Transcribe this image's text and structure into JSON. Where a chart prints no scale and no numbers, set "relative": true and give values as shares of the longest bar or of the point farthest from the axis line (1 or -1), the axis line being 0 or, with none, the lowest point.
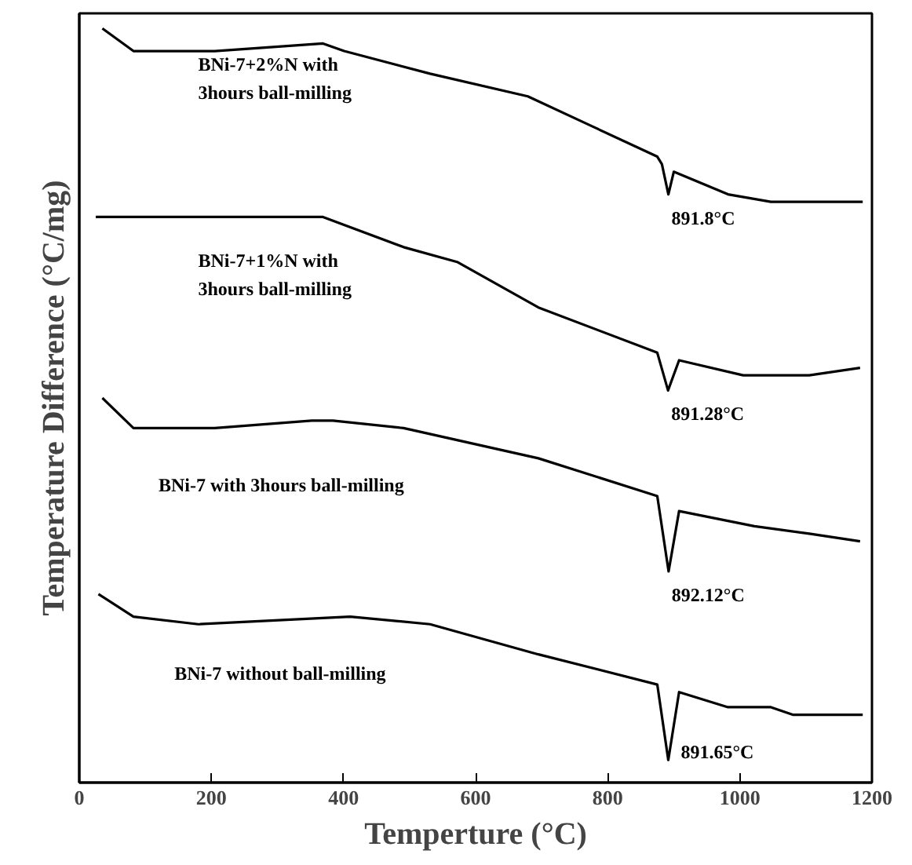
{
  "chart_data": {
    "type": "line",
    "relative": true,
    "xlabel": "Temperture (°C)",
    "ylabel": "Temperature Difference (°C/mg)",
    "xlim": [
      0,
      1200
    ],
    "xticks": [
      0,
      200,
      400,
      600,
      800,
      1000,
      1200
    ],
    "tick_labels": "x",
    "grid": false,
    "marker": "none",
    "line_style": "solid",
    "series": [
      {
        "name": "BNi-7+2%N with\n3hours ball-milling",
        "color": "#000000",
        "x": [
          35,
          82,
          205,
          369,
          401,
          531,
          679,
          777,
          875,
          882,
          891.8,
          900,
          982,
          1047,
          1105,
          1186
        ],
        "values": [
          1.0,
          0.97,
          0.97,
          0.98,
          0.97,
          0.94,
          0.91,
          0.87,
          0.83,
          0.82,
          0.78,
          0.81,
          0.78,
          0.77,
          0.77,
          0.77
        ]
      },
      {
        "name": "BNi-7+1%N with\n3hours ball-milling",
        "color": "#000000",
        "x": [
          25,
          41,
          369,
          491,
          573,
          695,
          875,
          891.28,
          908,
          1005,
          1105,
          1182
        ],
        "values": [
          0.75,
          0.75,
          0.75,
          0.71,
          0.69,
          0.63,
          0.57,
          0.52,
          0.56,
          0.54,
          0.54,
          0.55
        ]
      },
      {
        "name": "BNi-7 with 3hours ball-milling",
        "color": "#000000",
        "x": [
          35,
          82,
          205,
          352,
          384,
          491,
          695,
          875,
          892.12,
          908,
          1022,
          1105,
          1182
        ],
        "values": [
          0.51,
          0.47,
          0.47,
          0.48,
          0.48,
          0.47,
          0.43,
          0.38,
          0.28,
          0.36,
          0.34,
          0.33,
          0.32
        ]
      },
      {
        "name": "BNi-7 without ball-milling",
        "color": "#000000",
        "x": [
          29,
          82,
          180,
          410,
          531,
          695,
          875,
          891.65,
          908,
          982,
          1022,
          1047,
          1080,
          1186
        ],
        "values": [
          0.25,
          0.22,
          0.21,
          0.22,
          0.21,
          0.17,
          0.13,
          0.03,
          0.12,
          0.1,
          0.1,
          0.1,
          0.09,
          0.09
        ]
      }
    ],
    "annotations": [
      {
        "text": "891.8°C",
        "x": 891.8,
        "y": 0.78
      },
      {
        "text": "891.28°C",
        "x": 891.28,
        "y": 0.52
      },
      {
        "text": "892.12°C",
        "x": 892.12,
        "y": 0.28
      },
      {
        "text": "891.65°C",
        "x": 891.65,
        "y": 0.03
      }
    ]
  }
}
